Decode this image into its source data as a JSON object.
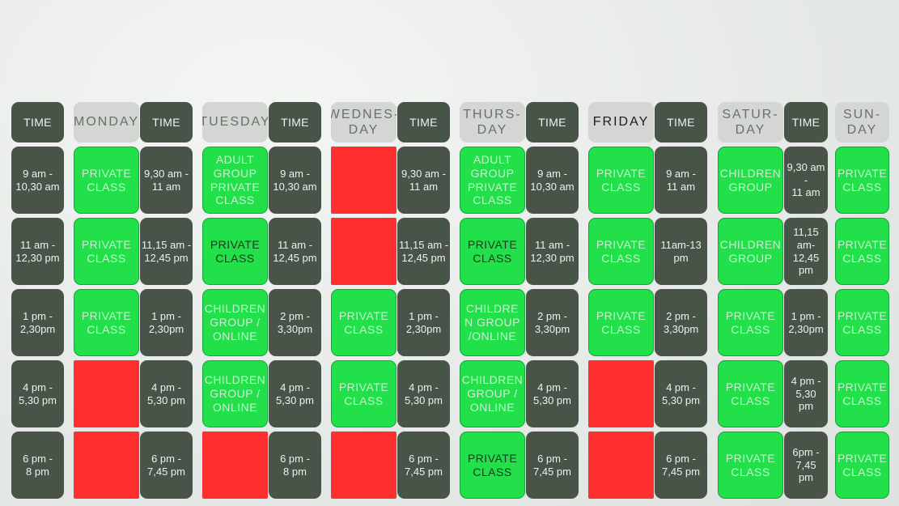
{
  "columns": [
    {
      "time_header": "TIME",
      "day_header": "MONDAY",
      "day_dark": false
    },
    {
      "time_header": "TIME",
      "day_header": "TUESDAY",
      "day_dark": false
    },
    {
      "time_header": "TIME",
      "day_header": "WEDNES-\nDAY",
      "day_dark": false
    },
    {
      "time_header": "TIME",
      "day_header": "THURS-\nDAY",
      "day_dark": false
    },
    {
      "time_header": "TIME",
      "day_header": "FRIDAY",
      "day_dark": true
    },
    {
      "time_header": "TIME",
      "day_header": "SATUR-\nDAY",
      "day_dark": false
    },
    {
      "time_header": "TIME",
      "day_header": "SUN-\nDAY",
      "day_dark": false
    }
  ],
  "times": [
    [
      "9 am -\n10,30 am",
      "11 am -\n12,30 pm",
      "1 pm -\n2,30pm",
      "4 pm -\n5,30 pm",
      "6 pm -\n8 pm"
    ],
    [
      "9,30 am -\n11 am",
      "11,15 am -\n12,45 pm",
      "1 pm -\n2,30pm",
      "4 pm -\n5,30 pm",
      "6 pm -\n7,45 pm"
    ],
    [
      "9 am -\n10,30 am",
      "11 am -\n12,45 pm",
      "2 pm -\n3,30pm",
      "4 pm -\n5,30 pm",
      "6 pm -\n8 pm"
    ],
    [
      "9,30 am -\n11 am",
      "11,15 am -\n12,45 pm",
      "1 pm -\n2,30pm",
      "4 pm -\n5,30 pm",
      "6 pm -\n7,45 pm"
    ],
    [
      "9 am -\n10,30 am",
      "11 am -\n12,30 pm",
      "2 pm -\n3,30pm",
      "4 pm -\n5,30 pm",
      "6 pm -\n7,45 pm"
    ],
    [
      "9 am -\n11 am",
      "11am-13\npm",
      "2 pm -\n3,30pm",
      "4 pm -\n5,30 pm",
      "6 pm -\n7,45 pm"
    ],
    [
      "9,30 am\n-\n11 am",
      "11,15\nam-\n12,45\npm",
      "1 pm -\n2,30pm",
      "4 pm -\n5,30\npm",
      "6pm -\n7,45\npm"
    ]
  ],
  "slots": [
    [
      {
        "status": "available",
        "label": "PRIVATE\nCLASS",
        "dark": false
      },
      {
        "status": "available",
        "label": "PRIVATE\nCLASS",
        "dark": false
      },
      {
        "status": "available",
        "label": "PRIVATE\nCLASS",
        "dark": false
      },
      {
        "status": "booked",
        "label": "",
        "dark": false
      },
      {
        "status": "booked",
        "label": "",
        "dark": false
      }
    ],
    [
      {
        "status": "available",
        "label": "ADULT\nGROUP\nPRIVATE\nCLASS",
        "dark": false
      },
      {
        "status": "available",
        "label": "PRIVATE\nCLASS",
        "dark": true
      },
      {
        "status": "available",
        "label": "CHILDREN\nGROUP /\nONLINE",
        "dark": false
      },
      {
        "status": "available",
        "label": "CHILDREN\nGROUP /\nONLINE",
        "dark": false
      },
      {
        "status": "booked",
        "label": "",
        "dark": false
      }
    ],
    [
      {
        "status": "booked",
        "label": "",
        "dark": false
      },
      {
        "status": "booked",
        "label": "",
        "dark": false
      },
      {
        "status": "available",
        "label": "PRIVATE\nCLASS",
        "dark": false
      },
      {
        "status": "available",
        "label": "PRIVATE\nCLASS",
        "dark": false
      },
      {
        "status": "booked",
        "label": "",
        "dark": false
      }
    ],
    [
      {
        "status": "available",
        "label": "ADULT\nGROUP\nPRIVATE\nCLASS",
        "dark": false
      },
      {
        "status": "available",
        "label": "PRIVATE\nCLASS",
        "dark": true
      },
      {
        "status": "available",
        "label": "CHILDRE\nN GROUP\n/ONLINE",
        "dark": false
      },
      {
        "status": "available",
        "label": "CHILDREN\nGROUP /\nONLINE",
        "dark": false
      },
      {
        "status": "available",
        "label": "PRIVATE\nCLASS",
        "dark": true
      }
    ],
    [
      {
        "status": "available",
        "label": "PRIVATE\nCLASS",
        "dark": false
      },
      {
        "status": "available",
        "label": "PRIVATE\nCLASS",
        "dark": false
      },
      {
        "status": "available",
        "label": "PRIVATE\nCLASS",
        "dark": false
      },
      {
        "status": "booked",
        "label": "",
        "dark": false
      },
      {
        "status": "booked",
        "label": "",
        "dark": false
      }
    ],
    [
      {
        "status": "available",
        "label": "CHILDREN\nGROUP",
        "dark": false
      },
      {
        "status": "available",
        "label": "CHILDREN\nGROUP",
        "dark": false
      },
      {
        "status": "available",
        "label": "PRIVATE\nCLASS",
        "dark": false
      },
      {
        "status": "available",
        "label": "PRIVATE\nCLASS",
        "dark": false
      },
      {
        "status": "available",
        "label": "PRIVATE\nCLASS",
        "dark": false
      }
    ],
    [
      {
        "status": "available",
        "label": "PRIVATE\nCLASS",
        "dark": false
      },
      {
        "status": "available",
        "label": "PRIVATE\nCLASS",
        "dark": false
      },
      {
        "status": "available",
        "label": "PRIVATE\nCLASS",
        "dark": false
      },
      {
        "status": "available",
        "label": "PRIVATE\nCLASS",
        "dark": false
      },
      {
        "status": "available",
        "label": "PRIVATE\nCLASS",
        "dark": false
      }
    ]
  ],
  "colors": {
    "time_cell": "#485448",
    "day_header": "#d3d6d2",
    "available": "#22e04a",
    "booked": "#ff2f2f"
  }
}
